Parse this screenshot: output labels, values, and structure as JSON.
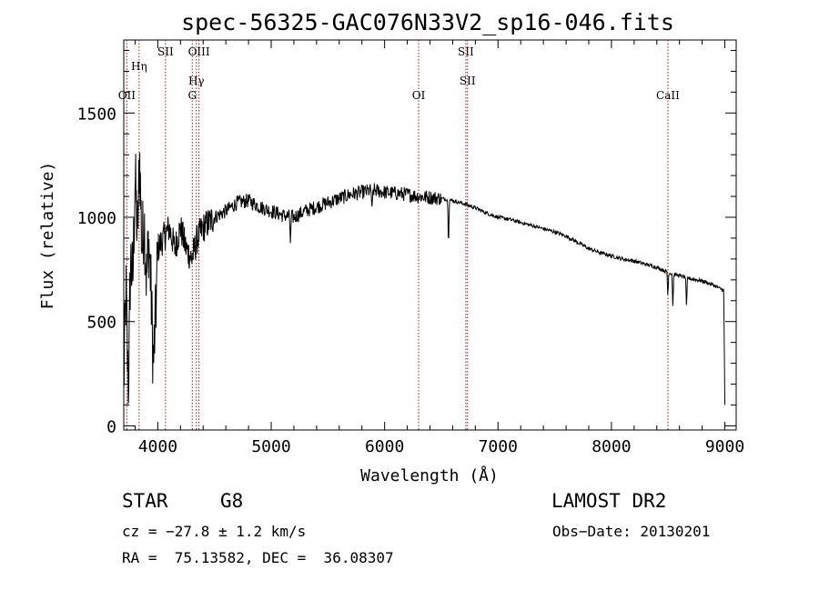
{
  "chart_data": {
    "type": "line",
    "title": "spec-56325-GAC076N33V2_sp16-046.fits",
    "xlabel": "Wavelength (Å)",
    "ylabel": "Flux (relative)",
    "xlim": [
      3700,
      9100
    ],
    "ylim": [
      -20,
      1850
    ],
    "xticks": [
      4000,
      5000,
      6000,
      7000,
      8000,
      9000
    ],
    "xtick_labels": [
      "4000",
      "5000",
      "6000",
      "7000",
      "8000",
      "9000"
    ],
    "yticks": [
      0,
      500,
      1000,
      1500
    ],
    "ytick_labels": [
      "0",
      "500",
      "1000",
      "1500"
    ],
    "spectrum_knots": [
      [
        3700,
        200
      ],
      [
        3720,
        650
      ],
      [
        3740,
        150
      ],
      [
        3760,
        800
      ],
      [
        3780,
        700
      ],
      [
        3800,
        1200
      ],
      [
        3820,
        900
      ],
      [
        3840,
        1300
      ],
      [
        3860,
        850
      ],
      [
        3880,
        1000
      ],
      [
        3900,
        700
      ],
      [
        3920,
        900
      ],
      [
        3940,
        650
      ],
      [
        3960,
        300
      ],
      [
        3980,
        500
      ],
      [
        4000,
        850
      ],
      [
        4050,
        900
      ],
      [
        4100,
        950
      ],
      [
        4150,
        850
      ],
      [
        4200,
        950
      ],
      [
        4250,
        850
      ],
      [
        4300,
        800
      ],
      [
        4350,
        900
      ],
      [
        4400,
        950
      ],
      [
        4500,
        1000
      ],
      [
        4600,
        1030
      ],
      [
        4700,
        1070
      ],
      [
        4800,
        1080
      ],
      [
        4900,
        1050
      ],
      [
        5000,
        1030
      ],
      [
        5100,
        1010
      ],
      [
        5200,
        1000
      ],
      [
        5300,
        1030
      ],
      [
        5400,
        1050
      ],
      [
        5500,
        1070
      ],
      [
        5600,
        1090
      ],
      [
        5700,
        1110
      ],
      [
        5800,
        1120
      ],
      [
        5900,
        1130
      ],
      [
        6000,
        1120
      ],
      [
        6100,
        1115
      ],
      [
        6200,
        1110
      ],
      [
        6300,
        1100
      ],
      [
        6400,
        1095
      ],
      [
        6500,
        1090
      ],
      [
        6600,
        1080
      ],
      [
        6700,
        1065
      ],
      [
        6800,
        1045
      ],
      [
        6900,
        1020
      ],
      [
        7000,
        1000
      ],
      [
        7100,
        990
      ],
      [
        7200,
        975
      ],
      [
        7300,
        960
      ],
      [
        7400,
        945
      ],
      [
        7500,
        930
      ],
      [
        7600,
        910
      ],
      [
        7700,
        880
      ],
      [
        7800,
        850
      ],
      [
        7900,
        830
      ],
      [
        8000,
        815
      ],
      [
        8100,
        800
      ],
      [
        8200,
        790
      ],
      [
        8300,
        775
      ],
      [
        8400,
        760
      ],
      [
        8500,
        735
      ],
      [
        8600,
        720
      ],
      [
        8700,
        705
      ],
      [
        8800,
        695
      ],
      [
        8900,
        675
      ],
      [
        8950,
        660
      ],
      [
        8990,
        650
      ],
      [
        9000,
        100
      ]
    ],
    "absorption_features": [
      {
        "wavelength": 5170,
        "depth": 140
      },
      {
        "wavelength": 5890,
        "depth": 120
      },
      {
        "wavelength": 6563,
        "depth": 230
      },
      {
        "wavelength": 8498,
        "depth": 120
      },
      {
        "wavelength": 8542,
        "depth": 170
      },
      {
        "wavelength": 8662,
        "depth": 160
      }
    ],
    "spectral_lines": [
      {
        "label": "OII",
        "wavelength": 3727,
        "level": 3
      },
      {
        "label": "Hη",
        "wavelength": 3835,
        "level": 1
      },
      {
        "label": "SII",
        "wavelength": 4068,
        "level": 0
      },
      {
        "label": "G",
        "wavelength": 4304,
        "level": 3
      },
      {
        "label": "Hγ",
        "wavelength": 4340,
        "level": 2
      },
      {
        "label": "OIII",
        "wavelength": 4363,
        "level": 0
      },
      {
        "label": "OI",
        "wavelength": 6300,
        "level": 3
      },
      {
        "label": "SII",
        "wavelength": 6716,
        "level": 0
      },
      {
        "label": "SII",
        "wavelength": 6731,
        "level": 2
      },
      {
        "label": "CaII",
        "wavelength": 8498,
        "level": 3
      }
    ]
  },
  "info": {
    "classification": "STAR",
    "subclass": "G8",
    "survey": "LAMOST DR2",
    "redshift_line": "cz = −27.8 ± 1.2 km/s",
    "obs_date_line": "Obs−Date: 20130201",
    "coords_line": "RA =  75.13582, DEC =  36.08307"
  }
}
